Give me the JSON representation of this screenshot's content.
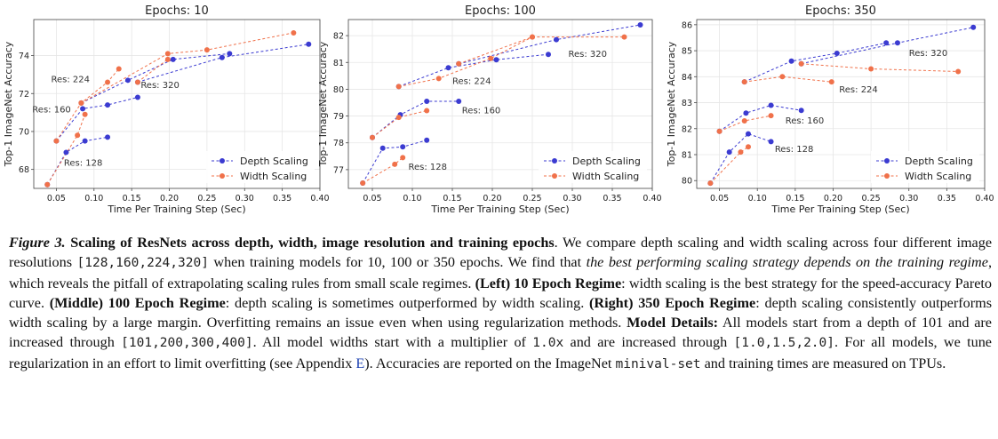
{
  "colors": {
    "depth": "#3b3bd1",
    "width": "#f0714a"
  },
  "chart_data": [
    {
      "type": "line",
      "title": "Epochs: 10",
      "xlabel": "Time Per Training Step (Sec)",
      "ylabel": "Top-1 ImageNet Accuracy",
      "xlim": [
        0.02,
        0.4
      ],
      "ylim": [
        67.0,
        75.9
      ],
      "xticks": [
        0.05,
        0.1,
        0.15,
        0.2,
        0.25,
        0.3,
        0.35,
        0.4
      ],
      "xtick_labels": [
        "0.05",
        "0.10",
        "0.15",
        "0.20",
        "0.25",
        "0.30",
        "0.35",
        "0.40"
      ],
      "yticks": [
        68,
        70,
        72,
        74
      ],
      "ytick_labels": [
        "68",
        "70",
        "72",
        "74"
      ],
      "legend": {
        "position": "bottom-right",
        "entries": [
          "Depth Scaling",
          "Width Scaling"
        ]
      },
      "series": [
        {
          "name": "Depth Scaling",
          "group": "Res: 128",
          "x": [
            0.038,
            0.063,
            0.088,
            0.118
          ],
          "y": [
            67.2,
            68.9,
            69.5,
            69.7
          ]
        },
        {
          "name": "Depth Scaling",
          "group": "Res: 160",
          "x": [
            0.05,
            0.085,
            0.118,
            0.158
          ],
          "y": [
            69.5,
            71.2,
            71.4,
            71.8
          ]
        },
        {
          "name": "Depth Scaling",
          "group": "Res: 224",
          "x": [
            0.083,
            0.145,
            0.205,
            0.28
          ],
          "y": [
            71.5,
            72.7,
            73.8,
            74.1
          ]
        },
        {
          "name": "Depth Scaling",
          "group": "Res: 320",
          "x": [
            0.158,
            0.27,
            0.385
          ],
          "y": [
            72.6,
            73.9,
            74.6
          ]
        },
        {
          "name": "Width Scaling",
          "group": "Res: 128",
          "x": [
            0.038,
            0.078,
            0.088
          ],
          "y": [
            67.2,
            69.8,
            70.9
          ]
        },
        {
          "name": "Width Scaling",
          "group": "Res: 160",
          "x": [
            0.05,
            0.083,
            0.118,
            0.133
          ],
          "y": [
            69.5,
            71.5,
            72.6,
            73.3
          ]
        },
        {
          "name": "Width Scaling",
          "group": "Res: 224",
          "x": [
            0.083,
            0.198,
            0.25,
            0.365
          ],
          "y": [
            71.5,
            74.1,
            74.3,
            75.2
          ]
        },
        {
          "name": "Width Scaling",
          "group": "Res: 320",
          "x": [
            0.158,
            0.198
          ],
          "y": [
            72.6,
            73.8
          ]
        }
      ],
      "annotations": [
        {
          "text": "Res: 128",
          "x": 0.06,
          "y": 68.2
        },
        {
          "text": "Res: 160",
          "x": 0.018,
          "y": 71.0
        },
        {
          "text": "Res: 224",
          "x": 0.043,
          "y": 72.6
        },
        {
          "text": "Res: 320",
          "x": 0.162,
          "y": 72.3
        }
      ]
    },
    {
      "type": "line",
      "title": "Epochs: 100",
      "xlabel": "Time Per Training Step (Sec)",
      "ylabel": "Top-1 ImageNet Accuracy",
      "xlim": [
        0.02,
        0.4
      ],
      "ylim": [
        76.3,
        82.6
      ],
      "xticks": [
        0.05,
        0.1,
        0.15,
        0.2,
        0.25,
        0.3,
        0.35,
        0.4
      ],
      "xtick_labels": [
        "0.05",
        "0.10",
        "0.15",
        "0.20",
        "0.25",
        "0.30",
        "0.35",
        "0.40"
      ],
      "yticks": [
        77,
        78,
        79,
        80,
        81,
        82
      ],
      "ytick_labels": [
        "77",
        "78",
        "79",
        "80",
        "81",
        "82"
      ],
      "legend": {
        "position": "bottom-right",
        "entries": [
          "Depth Scaling",
          "Width Scaling"
        ]
      },
      "series": [
        {
          "name": "Depth Scaling",
          "group": "Res: 128",
          "x": [
            0.038,
            0.063,
            0.088,
            0.118
          ],
          "y": [
            76.5,
            77.8,
            77.85,
            78.1
          ]
        },
        {
          "name": "Depth Scaling",
          "group": "Res: 160",
          "x": [
            0.05,
            0.085,
            0.118,
            0.158
          ],
          "y": [
            78.2,
            79.05,
            79.55,
            79.55
          ]
        },
        {
          "name": "Depth Scaling",
          "group": "Res: 224",
          "x": [
            0.083,
            0.145,
            0.205,
            0.27
          ],
          "y": [
            80.1,
            80.8,
            81.1,
            81.3
          ]
        },
        {
          "name": "Depth Scaling",
          "group": "Res: 320",
          "x": [
            0.158,
            0.28,
            0.385
          ],
          "y": [
            80.95,
            81.85,
            82.4
          ]
        },
        {
          "name": "Width Scaling",
          "group": "Res: 128",
          "x": [
            0.038,
            0.078,
            0.088
          ],
          "y": [
            76.5,
            77.2,
            77.45
          ]
        },
        {
          "name": "Width Scaling",
          "group": "Res: 160",
          "x": [
            0.05,
            0.083,
            0.118
          ],
          "y": [
            78.2,
            78.95,
            79.2
          ]
        },
        {
          "name": "Width Scaling",
          "group": "Res: 224",
          "x": [
            0.083,
            0.133,
            0.198,
            0.25
          ],
          "y": [
            80.1,
            80.4,
            81.15,
            81.95
          ]
        },
        {
          "name": "Width Scaling",
          "group": "Res: 320",
          "x": [
            0.158,
            0.25,
            0.365
          ],
          "y": [
            80.95,
            81.95,
            81.95
          ]
        }
      ],
      "annotations": [
        {
          "text": "Res: 128",
          "x": 0.095,
          "y": 77.0
        },
        {
          "text": "Res: 160",
          "x": 0.162,
          "y": 79.1
        },
        {
          "text": "Res: 224",
          "x": 0.15,
          "y": 80.2
        },
        {
          "text": "Res: 320",
          "x": 0.295,
          "y": 81.2
        }
      ]
    },
    {
      "type": "line",
      "title": "Epochs: 350",
      "xlabel": "Time Per Training Step (Sec)",
      "ylabel": "Top-1 ImageNet Accuracy",
      "xlim": [
        0.02,
        0.4
      ],
      "ylim": [
        79.7,
        86.2
      ],
      "xticks": [
        0.05,
        0.1,
        0.15,
        0.2,
        0.25,
        0.3,
        0.35,
        0.4
      ],
      "xtick_labels": [
        "0.05",
        "0.10",
        "0.15",
        "0.20",
        "0.25",
        "0.30",
        "0.35",
        "0.40"
      ],
      "yticks": [
        80,
        81,
        82,
        83,
        84,
        85,
        86
      ],
      "ytick_labels": [
        "80",
        "81",
        "82",
        "83",
        "84",
        "85",
        "86"
      ],
      "legend": {
        "position": "bottom-right",
        "entries": [
          "Depth Scaling",
          "Width Scaling"
        ]
      },
      "series": [
        {
          "name": "Depth Scaling",
          "group": "Res: 128",
          "x": [
            0.038,
            0.063,
            0.088,
            0.118
          ],
          "y": [
            79.9,
            81.1,
            81.8,
            81.5
          ]
        },
        {
          "name": "Depth Scaling",
          "group": "Res: 160",
          "x": [
            0.05,
            0.085,
            0.118,
            0.158
          ],
          "y": [
            81.9,
            82.6,
            82.9,
            82.7
          ]
        },
        {
          "name": "Depth Scaling",
          "group": "Res: 224",
          "x": [
            0.083,
            0.145,
            0.205,
            0.27
          ],
          "y": [
            83.8,
            84.6,
            84.9,
            85.3
          ]
        },
        {
          "name": "Depth Scaling",
          "group": "Res: 320",
          "x": [
            0.158,
            0.285,
            0.385
          ],
          "y": [
            84.5,
            85.3,
            85.9
          ]
        },
        {
          "name": "Width Scaling",
          "group": "Res: 128",
          "x": [
            0.038,
            0.078,
            0.088
          ],
          "y": [
            79.9,
            81.1,
            81.3
          ]
        },
        {
          "name": "Width Scaling",
          "group": "Res: 160",
          "x": [
            0.05,
            0.083,
            0.118
          ],
          "y": [
            81.9,
            82.3,
            82.5
          ]
        },
        {
          "name": "Width Scaling",
          "group": "Res: 224",
          "x": [
            0.083,
            0.133,
            0.198
          ],
          "y": [
            83.8,
            84.0,
            83.8
          ]
        },
        {
          "name": "Width Scaling",
          "group": "Res: 320",
          "x": [
            0.158,
            0.25,
            0.365
          ],
          "y": [
            84.5,
            84.3,
            84.2
          ]
        }
      ],
      "annotations": [
        {
          "text": "Res: 128",
          "x": 0.123,
          "y": 81.1
        },
        {
          "text": "Res: 160",
          "x": 0.137,
          "y": 82.2
        },
        {
          "text": "Res: 224",
          "x": 0.208,
          "y": 83.4
        },
        {
          "text": "Res: 320",
          "x": 0.3,
          "y": 84.8
        }
      ]
    }
  ],
  "caption": {
    "figure_label": "Figure 3.",
    "title": "Scaling of ResNets across depth, width, image resolution and training epochs",
    "t1": ". We compare depth scaling and width scaling across four different image resolutions ",
    "code_res": "[128,160,224,320]",
    "t2": " when training models for 10, 100 or 350 epochs. We find that ",
    "emph": "the best performing scaling strategy depends on the training regime",
    "t3": ", which reveals the pitfall of extrapolating scaling rules from small scale regimes. ",
    "left_head": "(Left) 10 Epoch Regime",
    "left_text": ": width scaling is the best strategy for the speed-accuracy Pareto curve. ",
    "mid_head": "(Middle) 100 Epoch Regime",
    "mid_text": ": depth scaling is sometimes outperformed by width scaling. ",
    "right_head": "(Right) 350 Epoch Regime",
    "right_text": ": depth scaling consistently outperforms width scaling by a large margin. Overfitting remains an issue even when using regularization methods. ",
    "details_head": "Model Details:",
    "details_text": " All models start from a depth of 101 and are increased through ",
    "code_depth": "[101,200,300,400]",
    "t4": ". All model widths start with a multiplier of ",
    "code_mult": "1.0x",
    "t5": " and are increased through ",
    "code_widths": "[1.0,1.5,2.0]",
    "t6": ". For all models, we tune regularization in an effort to limit overfitting (see Appendix ",
    "appendix_ref": "E",
    "t7": "). Accuracies are reported on the ImageNet ",
    "code_set": "minival-set",
    "t8": " and training times are measured on TPUs."
  }
}
